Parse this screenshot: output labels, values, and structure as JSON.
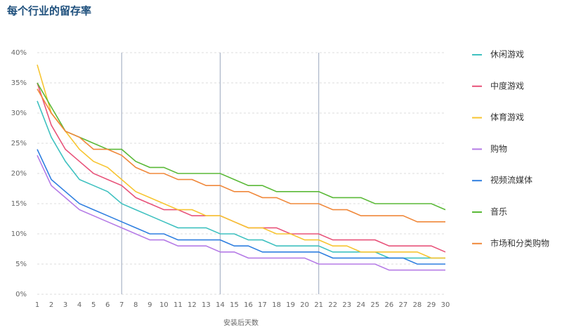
{
  "chart_data": {
    "type": "line",
    "title": "每个行业的留存率",
    "x_label": "安装后天数",
    "x": [
      1,
      2,
      3,
      4,
      5,
      6,
      7,
      8,
      9,
      10,
      11,
      12,
      13,
      14,
      15,
      16,
      17,
      18,
      19,
      20,
      21,
      22,
      23,
      24,
      25,
      26,
      27,
      28,
      29,
      30
    ],
    "xlim": [
      1,
      30
    ],
    "xticks": [
      1,
      2,
      3,
      4,
      5,
      6,
      7,
      8,
      9,
      10,
      11,
      12,
      13,
      14,
      15,
      16,
      17,
      18,
      19,
      20,
      21,
      22,
      23,
      24,
      25,
      26,
      27,
      28,
      29,
      30
    ],
    "ylim": [
      0,
      40
    ],
    "yticks": [
      {
        "value": 0,
        "label": "0%"
      },
      {
        "value": 5,
        "label": "5%"
      },
      {
        "value": 10,
        "label": "10%"
      },
      {
        "value": 15,
        "label": "15%"
      },
      {
        "value": 20,
        "label": "20%"
      },
      {
        "value": 25,
        "label": "25%"
      },
      {
        "value": 30,
        "label": "30%"
      },
      {
        "value": 35,
        "label": "35%"
      },
      {
        "value": 40,
        "label": "40%"
      }
    ],
    "grid": true,
    "reference_lines": [
      7,
      14,
      21
    ],
    "legend": "right",
    "series": [
      {
        "name": "休闲游戏",
        "color": "#3fc1c0",
        "values": [
          32,
          26,
          22,
          19,
          18,
          17,
          15,
          14,
          13,
          12,
          11,
          11,
          11,
          10,
          10,
          9,
          9,
          8,
          8,
          8,
          8,
          7,
          7,
          7,
          7,
          6,
          6,
          6,
          6,
          6
        ]
      },
      {
        "name": "中度游戏",
        "color": "#e8537a",
        "values": [
          35,
          28,
          24,
          22,
          20,
          19,
          18,
          16,
          15,
          14,
          14,
          13,
          13,
          13,
          12,
          11,
          11,
          11,
          10,
          10,
          10,
          9,
          9,
          9,
          9,
          8,
          8,
          8,
          8,
          7
        ]
      },
      {
        "name": "体育游戏",
        "color": "#f7c531",
        "values": [
          38,
          30,
          27,
          24,
          22,
          21,
          19,
          17,
          16,
          15,
          14,
          14,
          13,
          13,
          12,
          11,
          11,
          10,
          10,
          9,
          9,
          8,
          8,
          7,
          7,
          7,
          7,
          7,
          6,
          6
        ]
      },
      {
        "name": "购物",
        "color": "#b57be6",
        "values": [
          23,
          18,
          16,
          14,
          13,
          12,
          11,
          10,
          9,
          9,
          8,
          8,
          8,
          7,
          7,
          6,
          6,
          6,
          6,
          6,
          5,
          5,
          5,
          5,
          5,
          4,
          4,
          4,
          4,
          4
        ]
      },
      {
        "name": "视频流媒体",
        "color": "#2f7fe0",
        "values": [
          24,
          19,
          17,
          15,
          14,
          13,
          12,
          11,
          10,
          10,
          9,
          9,
          9,
          9,
          8,
          8,
          7,
          7,
          7,
          7,
          7,
          6,
          6,
          6,
          6,
          6,
          6,
          5,
          5,
          5
        ]
      },
      {
        "name": "音乐",
        "color": "#5ab937",
        "values": [
          35,
          31,
          27,
          26,
          25,
          24,
          24,
          22,
          21,
          21,
          20,
          20,
          20,
          20,
          19,
          18,
          18,
          17,
          17,
          17,
          17,
          16,
          16,
          16,
          15,
          15,
          15,
          15,
          15,
          14
        ]
      },
      {
        "name": "市场和分类购物",
        "color": "#f0883a",
        "values": [
          34,
          30,
          27,
          26,
          24,
          24,
          23,
          21,
          20,
          20,
          19,
          19,
          18,
          18,
          17,
          17,
          16,
          16,
          15,
          15,
          15,
          14,
          14,
          13,
          13,
          13,
          13,
          12,
          12,
          12
        ]
      }
    ]
  }
}
